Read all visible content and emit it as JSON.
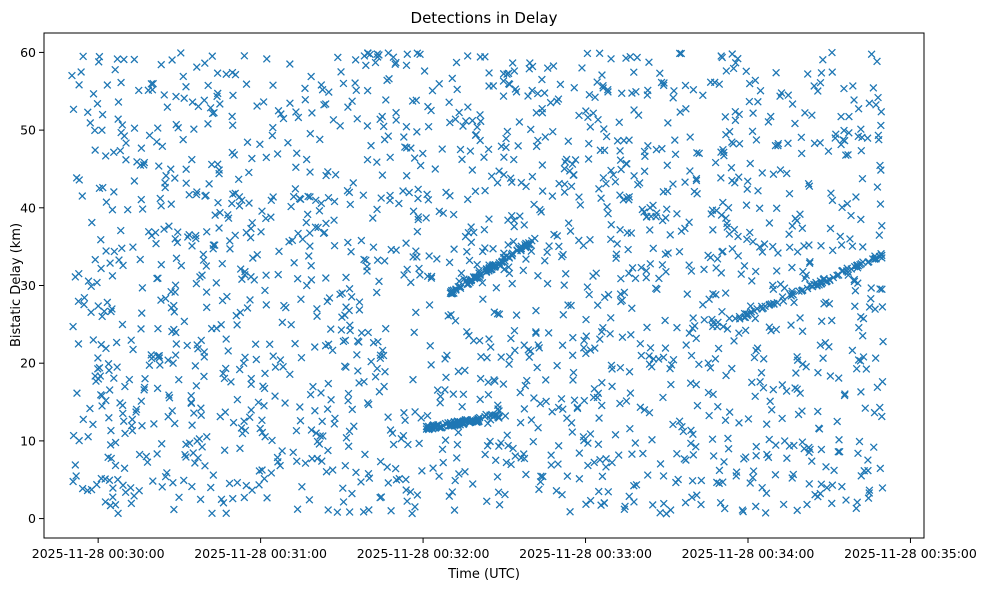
{
  "chart_data": {
    "type": "scatter",
    "title": "Detections in Delay",
    "xlabel": "Time (UTC)",
    "ylabel": "Bistatic Delay (km)",
    "marker": "x",
    "marker_color": "#1f77b4",
    "x_start": "2025-11-28 00:29:50",
    "x_end": "2025-11-28 00:34:50",
    "xlim": [
      "2025-11-28 00:29:40",
      "2025-11-28 00:35:05"
    ],
    "ylim": [
      -2.5,
      62.5
    ],
    "x_ticks": [
      "2025-11-28 00:30:00",
      "2025-11-28 00:31:00",
      "2025-11-28 00:32:00",
      "2025-11-28 00:33:00",
      "2025-11-28 00:34:00",
      "2025-11-28 00:35:00"
    ],
    "y_ticks": [
      0,
      10,
      20,
      30,
      40,
      50,
      60
    ],
    "grid": false,
    "legend": "none",
    "tracks": [
      {
        "t": [
          "2025-11-28 00:32:00",
          "2025-11-28 00:32:28"
        ],
        "delay": [
          11.5,
          13.2
        ]
      },
      {
        "t": [
          "2025-11-28 00:32:10",
          "2025-11-28 00:32:42"
        ],
        "delay": [
          29.0,
          36.0
        ]
      },
      {
        "t": [
          "2025-11-28 00:33:55",
          "2025-11-28 00:34:50"
        ],
        "delay": [
          25.5,
          34.0
        ]
      }
    ],
    "approx_point_count": 2000
  }
}
